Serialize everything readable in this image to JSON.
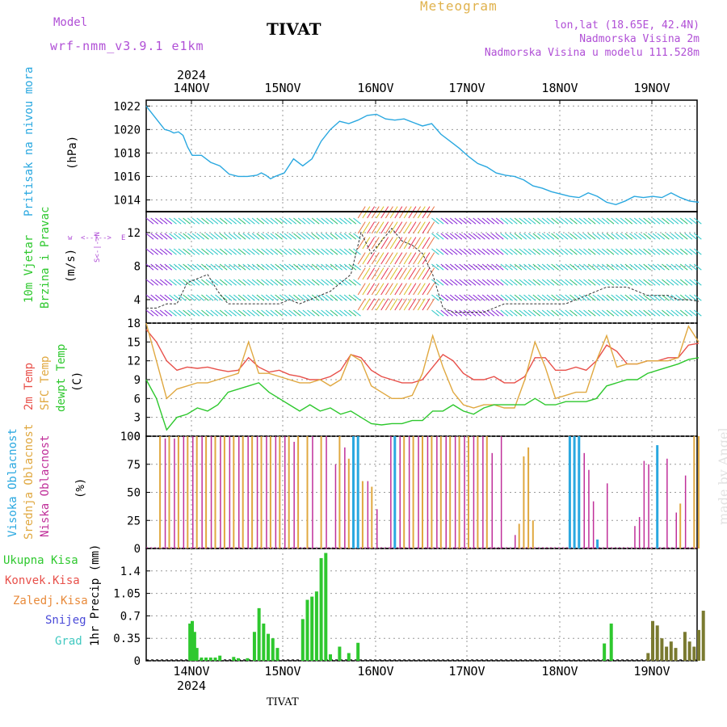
{
  "header": {
    "model_label": "Model",
    "model_name": "wrf-nmm_v3.9.1 e1km",
    "title": "TIVAT",
    "meteogram_label": "Meteogram",
    "location_line": "lon,lat (18.65E, 42.4N)",
    "altitude_line": "Nadmorska Visina 2m",
    "model_altitude_line": "Nadmorska Visina u modelu 111.528m"
  },
  "footer": {
    "station": "TIVAT",
    "credit": "made by Angel"
  },
  "colors": {
    "pressure": "#2aa8e0",
    "temp2m": "#e8504a",
    "sfc": "#e0a840",
    "dewpt": "#2ec82e",
    "high_cloud": "#2aa8e0",
    "mid_cloud": "#e0a840",
    "low_cloud": "#c0309a",
    "rain": "#2ec82e",
    "conv": "#e8504a",
    "frozen": "#e88a3a",
    "snow": "#4a4ad8",
    "hail": "#40c8c0",
    "wind_purple": "#8a2ad8"
  },
  "chart_data": {
    "type": "meteogram",
    "x_axis": {
      "top_year": "2024",
      "bottom_year": "2024",
      "days": [
        "14NOV",
        "15NOV",
        "16NOV",
        "17NOV",
        "18NOV",
        "19NOV"
      ]
    },
    "panels": [
      {
        "id": "pressure",
        "type": "line",
        "label": "Pritisak na nivou mora",
        "unit": "(hPa)",
        "ylim": [
          1013,
          1022.5
        ],
        "yticks": [
          "1022",
          "1020",
          "1018",
          "1016",
          "1014"
        ],
        "grid": true,
        "x": [
          0,
          0.1,
          0.2,
          0.3,
          0.4,
          0.5,
          0.6,
          0.7,
          0.8,
          0.9,
          1,
          1.2,
          1.4,
          1.6,
          1.8,
          2,
          2.2,
          2.4,
          2.5,
          2.6,
          2.7,
          2.8,
          3,
          3.2,
          3.4,
          3.6,
          3.8,
          4,
          4.2,
          4.4,
          4.6,
          4.8,
          5,
          5.2,
          5.4,
          5.6,
          5.8,
          6,
          6.2,
          6.4,
          6.6,
          6.8,
          7,
          7.2,
          7.4,
          7.6,
          7.8,
          8,
          8.2,
          8.4,
          8.6,
          8.8,
          9,
          9.2,
          9.4,
          9.6,
          9.8,
          10,
          10.2,
          10.4,
          10.6,
          10.8,
          11,
          11.2,
          11.4,
          11.6,
          11.8,
          12
        ],
        "values": [
          1022,
          1021.5,
          1021,
          1020.5,
          1020,
          1019.9,
          1019.7,
          1019.8,
          1019.5,
          1018.5,
          1017.8,
          1017.8,
          1017.2,
          1016.9,
          1016.2,
          1016,
          1016,
          1016.1,
          1016.3,
          1016.1,
          1015.8,
          1016,
          1016.3,
          1017.5,
          1016.9,
          1017.5,
          1019,
          1020,
          1020.7,
          1020.5,
          1020.8,
          1021.2,
          1021.3,
          1020.9,
          1020.8,
          1020.9,
          1020.6,
          1020.3,
          1020.5,
          1019.6,
          1019,
          1018.4,
          1017.7,
          1017.1,
          1016.8,
          1016.3,
          1016.1,
          1016,
          1015.7,
          1015.2,
          1015,
          1014.7,
          1014.5,
          1014.3,
          1014.2,
          1014.6,
          1014.3,
          1013.8,
          1013.6,
          1013.9,
          1014.3,
          1014.2,
          1014.3,
          1014.2,
          1014.6,
          1014.2,
          1013.9,
          1013.8
        ],
        "series": [
          {
            "name": "",
            "values": []
          }
        ]
      },
      {
        "id": "wind",
        "type": "barbs",
        "label": "10m Vjetar",
        "label2": "Brzina i Pravac",
        "unit": "(m/s)",
        "ylim": [
          1.2,
          14.5
        ],
        "yticks": [
          "12",
          "8",
          "4"
        ],
        "compass": [
          "w",
          "<--|-->",
          "E",
          "S<-|->N"
        ],
        "speed": [
          3,
          3,
          3.5,
          3.5,
          6,
          6.5,
          7,
          5,
          3.5,
          3.5,
          3.5,
          3.5,
          3.5,
          3.5,
          4,
          3.5,
          4,
          4.5,
          5,
          6,
          7,
          12,
          9.5,
          11,
          12.5,
          11,
          10.5,
          9.5,
          7,
          3,
          2.5,
          2.5,
          2.5,
          2.5,
          3,
          3.5,
          3.5,
          3.5,
          3.5,
          3.5,
          3.5,
          3.5,
          4,
          4.5,
          5,
          5.5,
          5.5,
          5.5,
          5,
          4.5,
          4.5,
          4.5,
          4,
          4,
          3.8
        ]
      },
      {
        "id": "temp",
        "type": "line",
        "labels": [
          "2m Temp",
          "SFC Temp",
          "dewpt Temp"
        ],
        "unit": "(C)",
        "ylim": [
          0,
          18
        ],
        "yticks": [
          "18",
          "15",
          "12",
          "9",
          "6",
          "3",
          "0"
        ],
        "series": [
          {
            "name": "2m Temp",
            "values": [
              17,
              15,
              12,
              10.5,
              11,
              10.8,
              11,
              10.6,
              10.3,
              10.5,
              12.5,
              11,
              10.2,
              10.5,
              9.8,
              9.5,
              9,
              9,
              9.5,
              10.5,
              13,
              12.5,
              10.5,
              9.5,
              9,
              8.5,
              8.5,
              9,
              11,
              13,
              12,
              10,
              9,
              9,
              9.5,
              8.5,
              8.5,
              9.5,
              12.5,
              12.5,
              10.5,
              10.5,
              11,
              10.5,
              12,
              14.5,
              13.5,
              11.5,
              11.5,
              12,
              12,
              12.5,
              12.5,
              14.5,
              14.8
            ]
          },
          {
            "name": "SFC Temp",
            "values": [
              18,
              12,
              6,
              7.5,
              8,
              8.5,
              8.5,
              9,
              9.5,
              10,
              15,
              10,
              10,
              9.5,
              9,
              8.5,
              8.5,
              9,
              8,
              9,
              13,
              12,
              8,
              7,
              6,
              6,
              6.5,
              10,
              16,
              11,
              7,
              5,
              4.5,
              5,
              5,
              4.5,
              4.5,
              9,
              15,
              11,
              6,
              6.5,
              7,
              7,
              12,
              16,
              11,
              11.5,
              11.5,
              12,
              12,
              12,
              12.5,
              17.5,
              15
            ]
          },
          {
            "name": "dewpt Temp",
            "values": [
              9,
              6,
              1,
              3,
              3.5,
              4.5,
              4,
              5,
              7,
              7.5,
              8,
              8.5,
              7,
              6,
              5,
              4,
              5,
              4,
              4.5,
              3.5,
              4,
              3,
              2,
              1.8,
              2,
              2,
              2.5,
              2.5,
              4,
              4,
              5,
              4,
              3.5,
              4.5,
              5,
              5,
              5,
              5,
              6,
              5,
              5,
              5.5,
              5.5,
              5.5,
              6,
              8,
              8.5,
              9,
              9,
              10,
              10.5,
              11,
              11.5,
              12.2,
              12.5
            ]
          }
        ]
      },
      {
        "id": "cloud",
        "type": "bar",
        "labels": [
          "Visoka Oblacnost",
          "Srednja Oblacnost",
          "Niska Oblacnost"
        ],
        "unit": "(%)",
        "ylim": [
          0,
          100
        ],
        "yticks": [
          "100",
          "75",
          "50",
          "25",
          "0"
        ],
        "high_bars": [
          {
            "x": 4.5,
            "v": 100
          },
          {
            "x": 4.6,
            "v": 100
          },
          {
            "x": 5.4,
            "v": 100
          },
          {
            "x": 9.2,
            "v": 100
          },
          {
            "x": 9.3,
            "v": 100
          },
          {
            "x": 9.4,
            "v": 100
          },
          {
            "x": 9.8,
            "v": 8
          },
          {
            "x": 11.1,
            "v": 92
          }
        ],
        "mid_bars": [
          {
            "x": 0.3,
            "v": 100
          },
          {
            "x": 0.5,
            "v": 100
          },
          {
            "x": 0.7,
            "v": 100
          },
          {
            "x": 0.9,
            "v": 100
          },
          {
            "x": 1.1,
            "v": 100
          },
          {
            "x": 1.3,
            "v": 100
          },
          {
            "x": 1.5,
            "v": 100
          },
          {
            "x": 1.7,
            "v": 100
          },
          {
            "x": 1.9,
            "v": 100
          },
          {
            "x": 2.1,
            "v": 100
          },
          {
            "x": 2.3,
            "v": 100
          },
          {
            "x": 2.5,
            "v": 100
          },
          {
            "x": 2.7,
            "v": 100
          },
          {
            "x": 2.9,
            "v": 100
          },
          {
            "x": 3.1,
            "v": 100
          },
          {
            "x": 3.3,
            "v": 100
          },
          {
            "x": 3.5,
            "v": 100
          },
          {
            "x": 3.8,
            "v": 100
          },
          {
            "x": 4.2,
            "v": 100
          },
          {
            "x": 4.4,
            "v": 80
          },
          {
            "x": 4.7,
            "v": 60
          },
          {
            "x": 4.9,
            "v": 55
          },
          {
            "x": 5.6,
            "v": 100
          },
          {
            "x": 5.8,
            "v": 100
          },
          {
            "x": 6.0,
            "v": 100
          },
          {
            "x": 6.2,
            "v": 100
          },
          {
            "x": 6.4,
            "v": 100
          },
          {
            "x": 6.6,
            "v": 100
          },
          {
            "x": 6.8,
            "v": 100
          },
          {
            "x": 7.0,
            "v": 100
          },
          {
            "x": 7.2,
            "v": 100
          },
          {
            "x": 7.4,
            "v": 100
          },
          {
            "x": 8.1,
            "v": 22
          },
          {
            "x": 8.2,
            "v": 82
          },
          {
            "x": 8.3,
            "v": 90
          },
          {
            "x": 8.4,
            "v": 25
          },
          {
            "x": 11.6,
            "v": 40
          },
          {
            "x": 11.9,
            "v": 100
          },
          {
            "x": 12.0,
            "v": 100
          }
        ],
        "low_bars": [
          {
            "x": 0.4,
            "v": 98
          },
          {
            "x": 0.6,
            "v": 98
          },
          {
            "x": 0.8,
            "v": 100
          },
          {
            "x": 1.0,
            "v": 100
          },
          {
            "x": 1.2,
            "v": 100
          },
          {
            "x": 1.4,
            "v": 100
          },
          {
            "x": 1.6,
            "v": 100
          },
          {
            "x": 1.8,
            "v": 100
          },
          {
            "x": 2.0,
            "v": 100
          },
          {
            "x": 2.2,
            "v": 100
          },
          {
            "x": 2.4,
            "v": 100
          },
          {
            "x": 2.6,
            "v": 100
          },
          {
            "x": 2.8,
            "v": 100
          },
          {
            "x": 3.0,
            "v": 100
          },
          {
            "x": 3.2,
            "v": 95
          },
          {
            "x": 3.6,
            "v": 100
          },
          {
            "x": 3.9,
            "v": 100
          },
          {
            "x": 4.1,
            "v": 75
          },
          {
            "x": 4.3,
            "v": 90
          },
          {
            "x": 4.8,
            "v": 60
          },
          {
            "x": 5.0,
            "v": 35
          },
          {
            "x": 5.3,
            "v": 100
          },
          {
            "x": 5.5,
            "v": 100
          },
          {
            "x": 5.7,
            "v": 100
          },
          {
            "x": 5.9,
            "v": 100
          },
          {
            "x": 6.1,
            "v": 100
          },
          {
            "x": 6.3,
            "v": 100
          },
          {
            "x": 6.5,
            "v": 100
          },
          {
            "x": 6.7,
            "v": 100
          },
          {
            "x": 6.9,
            "v": 100
          },
          {
            "x": 7.1,
            "v": 100
          },
          {
            "x": 7.3,
            "v": 100
          },
          {
            "x": 7.5,
            "v": 85
          },
          {
            "x": 7.7,
            "v": 100
          },
          {
            "x": 8.0,
            "v": 12
          },
          {
            "x": 10.0,
            "v": 58
          },
          {
            "x": 9.5,
            "v": 85
          },
          {
            "x": 9.6,
            "v": 70
          },
          {
            "x": 9.7,
            "v": 42
          },
          {
            "x": 10.6,
            "v": 20
          },
          {
            "x": 10.7,
            "v": 28
          },
          {
            "x": 10.8,
            "v": 78
          },
          {
            "x": 10.9,
            "v": 75
          },
          {
            "x": 11.3,
            "v": 80
          },
          {
            "x": 11.5,
            "v": 32
          },
          {
            "x": 11.7,
            "v": 65
          }
        ]
      },
      {
        "id": "precip",
        "type": "bar",
        "labels": [
          "Ukupna Kisa",
          "Konvek.Kisa",
          "Zaledj.Kisa",
          "Snijeg",
          "Grad"
        ],
        "unit": "1hr Precip (mm)",
        "ylim": [
          0,
          1.75
        ],
        "yticks": [
          "1.4",
          "1.05",
          "0.7",
          "0.35",
          "0"
        ],
        "rain_bars": [
          {
            "x": 0.95,
            "v": 0.58
          },
          {
            "x": 1.0,
            "v": 0.62
          },
          {
            "x": 1.05,
            "v": 0.45
          },
          {
            "x": 1.1,
            "v": 0.2
          },
          {
            "x": 1.2,
            "v": 0.05
          },
          {
            "x": 1.3,
            "v": 0.05
          },
          {
            "x": 1.4,
            "v": 0.05
          },
          {
            "x": 1.5,
            "v": 0.05
          },
          {
            "x": 1.6,
            "v": 0.08
          },
          {
            "x": 1.9,
            "v": 0.06
          },
          {
            "x": 2.0,
            "v": 0.04
          },
          {
            "x": 2.2,
            "v": 0.04
          },
          {
            "x": 2.35,
            "v": 0.45
          },
          {
            "x": 2.45,
            "v": 0.82
          },
          {
            "x": 2.55,
            "v": 0.58
          },
          {
            "x": 2.65,
            "v": 0.42
          },
          {
            "x": 2.75,
            "v": 0.35
          },
          {
            "x": 2.85,
            "v": 0.2
          },
          {
            "x": 3.4,
            "v": 0.65
          },
          {
            "x": 3.5,
            "v": 0.95
          },
          {
            "x": 3.6,
            "v": 1.0
          },
          {
            "x": 3.7,
            "v": 1.08
          },
          {
            "x": 3.8,
            "v": 1.6
          },
          {
            "x": 3.9,
            "v": 1.68
          },
          {
            "x": 4.0,
            "v": 0.1
          },
          {
            "x": 4.2,
            "v": 0.22
          },
          {
            "x": 4.4,
            "v": 0.12
          },
          {
            "x": 4.6,
            "v": 0.28
          },
          {
            "x": 9.95,
            "v": 0.27
          },
          {
            "x": 10.1,
            "v": 0.58
          }
        ],
        "mixed_bars": [
          {
            "x": 10.9,
            "v": 0.12
          },
          {
            "x": 11.0,
            "v": 0.62
          },
          {
            "x": 11.1,
            "v": 0.55
          },
          {
            "x": 11.2,
            "v": 0.35
          },
          {
            "x": 11.3,
            "v": 0.22
          },
          {
            "x": 11.4,
            "v": 0.3
          },
          {
            "x": 11.5,
            "v": 0.2
          },
          {
            "x": 11.7,
            "v": 0.45
          },
          {
            "x": 11.8,
            "v": 0.3
          },
          {
            "x": 11.9,
            "v": 0.22
          },
          {
            "x": 12.0,
            "v": 0.48
          },
          {
            "x": 12.1,
            "v": 0.78
          }
        ]
      }
    ]
  }
}
